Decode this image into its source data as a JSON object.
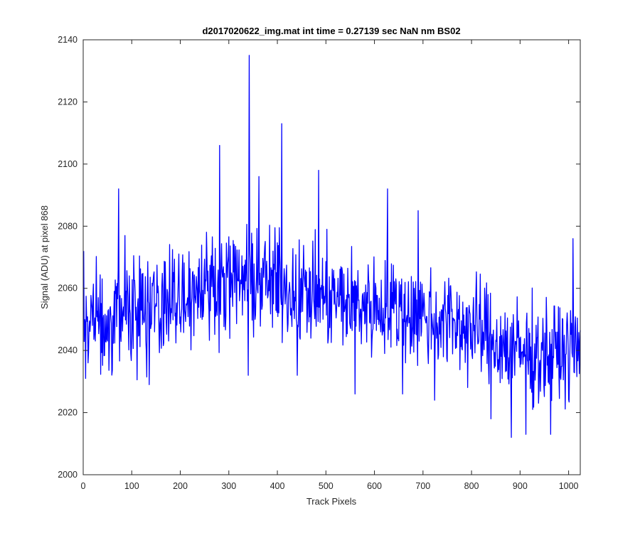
{
  "chart_data": {
    "type": "line",
    "title": "d2017020622_img.mat int time = 0.27139 sec  NaN nm BS02",
    "xlabel": "Track Pixels",
    "ylabel": "Signal (ADU) at pixel 868",
    "xlim": [
      0,
      1024
    ],
    "ylim": [
      2000,
      2140
    ],
    "xticks": [
      0,
      100,
      200,
      300,
      400,
      500,
      600,
      700,
      800,
      900,
      1000
    ],
    "yticks": [
      2000,
      2020,
      2040,
      2060,
      2080,
      2100,
      2120,
      2140
    ],
    "grid": false,
    "line_color": "#0000ff",
    "x": [
      1,
      1024
    ],
    "series": [
      {
        "name": "",
        "trend": [
          [
            1,
            2049
          ],
          [
            80,
            2052
          ],
          [
            160,
            2055
          ],
          [
            240,
            2061
          ],
          [
            300,
            2062
          ],
          [
            360,
            2063
          ],
          [
            420,
            2060
          ],
          [
            500,
            2057
          ],
          [
            560,
            2055
          ],
          [
            640,
            2054
          ],
          [
            700,
            2051
          ],
          [
            760,
            2049
          ],
          [
            820,
            2046
          ],
          [
            880,
            2040
          ],
          [
            940,
            2039
          ],
          [
            1024,
            2040
          ]
        ],
        "spikes": [
          [
            1,
            2072
          ],
          [
            5,
            2031
          ],
          [
            73,
            2092
          ],
          [
            86,
            2077
          ],
          [
            136,
            2029
          ],
          [
            281,
            2106
          ],
          [
            340,
            2032
          ],
          [
            342,
            2135
          ],
          [
            362,
            2096
          ],
          [
            409,
            2113
          ],
          [
            441,
            2032
          ],
          [
            485,
            2098
          ],
          [
            560,
            2026
          ],
          [
            627,
            2092
          ],
          [
            658,
            2026
          ],
          [
            690,
            2085
          ],
          [
            724,
            2024
          ],
          [
            840,
            2018
          ],
          [
            882,
            2012
          ],
          [
            912,
            2013
          ],
          [
            963,
            2013
          ],
          [
            1009,
            2076
          ]
        ],
        "values_summary": {
          "min": 2012,
          "max": 2135,
          "points": 1024
        }
      }
    ]
  }
}
